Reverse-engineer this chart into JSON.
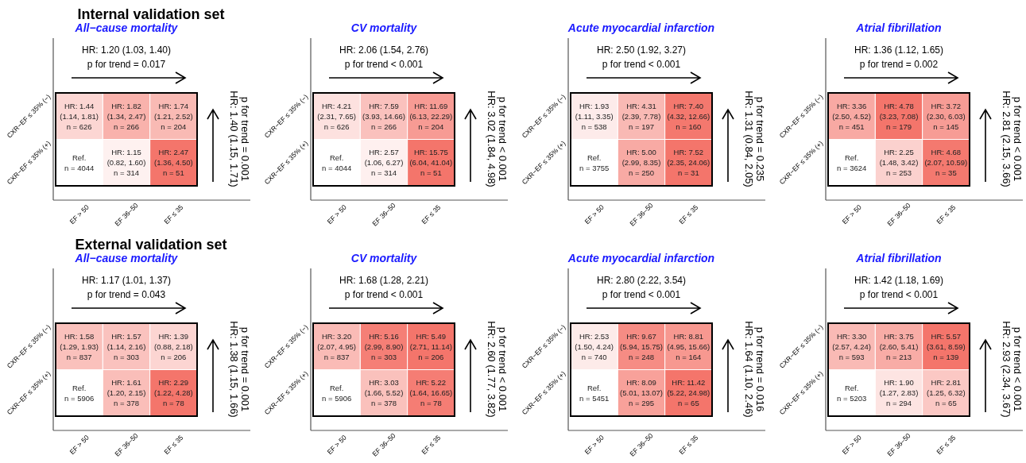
{
  "chart_data": [
    {
      "type": "heatmap",
      "data_labels": true,
      "title": "Internal validation set",
      "subtitle": "All−cause mortality",
      "categories": [
        "EF > 50",
        "EF 36–50",
        "EF ≤ 35"
      ],
      "y_categories": [
        "CXR−EF ≤ 35% (−)",
        "CXR−EF ≤ 35% (+)"
      ],
      "cells": [
        [
          1.44,
          1.82,
          1.74
        ],
        [
          null,
          1.15,
          2.47
        ]
      ],
      "cell_labels": [
        [
          "HR: 1.44",
          "HR: 1.82",
          "HR: 1.74"
        ],
        [
          "Ref.",
          "HR: 1.15",
          "HR: 2.47"
        ]
      ],
      "annotations": [
        "HR: 1.20 (1.03, 1.40)",
        "p for trend = 0.017",
        "HR: 1.40 (1.15, 1.71)",
        "p for trend = 0.001",
        "(1.14, 1.81)\nn = 626",
        "(1.34, 2.47)\nn = 266",
        "(1.21, 2.52)\nn = 204",
        "n = 4044",
        "(0.82, 1.60)\nn = 314",
        "(1.36, 4.50)\nn = 51"
      ]
    },
    {
      "type": "heatmap",
      "data_labels": true,
      "subtitle": "CV mortality",
      "categories": [
        "EF > 50",
        "EF 36–50",
        "EF ≤ 35"
      ],
      "y_categories": [
        "CXR−EF ≤ 35% (−)",
        "CXR−EF ≤ 35% (+)"
      ],
      "cells": [
        [
          4.21,
          7.59,
          11.69
        ],
        [
          null,
          2.57,
          15.75
        ]
      ],
      "cell_labels": [
        [
          "HR: 4.21",
          "HR: 7.59",
          "HR: 11.69"
        ],
        [
          "Ref.",
          "HR: 2.57",
          "HR: 15.75"
        ]
      ],
      "annotations": [
        "HR: 2.06 (1.54, 2.76)",
        "p for trend < 0.001",
        "HR: 3.02 (1.84, 4.98)",
        "p for trend < 0.001",
        "(2.31, 7.65)\nn = 626",
        "(3.93, 14.66)\nn = 266",
        "(6.13, 22.29)\nn = 204",
        "n = 4044",
        "(1.06, 6.27)\nn = 314",
        "(6.04, 41.04)\nn = 51"
      ]
    },
    {
      "type": "heatmap",
      "data_labels": true,
      "subtitle": "Acute myocardial infarction",
      "categories": [
        "EF > 50",
        "EF 36–50",
        "EF ≤ 35"
      ],
      "y_categories": [
        "CXR−EF ≤ 35% (−)",
        "CXR−EF ≤ 35% (+)"
      ],
      "cells": [
        [
          1.93,
          4.31,
          7.4
        ],
        [
          null,
          5.0,
          7.52
        ]
      ],
      "cell_labels": [
        [
          "HR: 1.93",
          "HR: 4.31",
          "HR: 7.40"
        ],
        [
          "Ref.",
          "HR: 5.00",
          "HR: 7.52"
        ]
      ],
      "annotations": [
        "HR: 2.50 (1.92, 3.27)",
        "p for trend < 0.001",
        "HR: 1.31 (0.84, 2.05)",
        "p for trend = 0.235",
        "(1.11, 3.35)\nn = 538",
        "(2.39, 7.78)\nn = 197",
        "(4.32, 12.66)\nn = 160",
        "n = 3755",
        "(2.99, 8.35)\nn = 250",
        "(2.35, 24.06)\nn = 31"
      ]
    },
    {
      "type": "heatmap",
      "data_labels": true,
      "subtitle": "Atrial fibrillation",
      "categories": [
        "EF > 50",
        "EF 36–50",
        "EF ≤ 35"
      ],
      "y_categories": [
        "CXR−EF ≤ 35% (−)",
        "CXR−EF ≤ 35% (+)"
      ],
      "cells": [
        [
          3.36,
          4.78,
          3.72
        ],
        [
          null,
          2.25,
          4.68
        ]
      ],
      "cell_labels": [
        [
          "HR: 3.36",
          "HR: 4.78",
          "HR: 3.72"
        ],
        [
          "Ref.",
          "HR: 2.25",
          "HR: 4.68"
        ]
      ],
      "annotations": [
        "HR: 1.36 (1.12, 1.65)",
        "p for trend = 0.002",
        "HR: 2.81 (2.15, 3.66)",
        "p for trend < 0.001",
        "(2.50, 4.52)\nn = 451",
        "(3.23, 7.08)\nn = 179",
        "(2.30, 6.03)\nn = 145",
        "n = 3624",
        "(1.48, 3.42)\nn = 253",
        "(2.07, 10.59)\nn = 35"
      ]
    },
    {
      "type": "heatmap",
      "data_labels": true,
      "title": "External validation set",
      "subtitle": "All−cause mortality",
      "categories": [
        "EF > 50",
        "EF 36–50",
        "EF ≤ 35"
      ],
      "y_categories": [
        "CXR−EF ≤ 35% (−)",
        "CXR−EF ≤ 35% (+)"
      ],
      "cells": [
        [
          1.58,
          1.57,
          1.39
        ],
        [
          null,
          1.61,
          2.29
        ]
      ],
      "cell_labels": [
        [
          "HR: 1.58",
          "HR: 1.57",
          "HR: 1.39"
        ],
        [
          "Ref.",
          "HR: 1.61",
          "HR: 2.29"
        ]
      ],
      "annotations": [
        "HR: 1.17 (1.01, 1.37)",
        "p for trend = 0.043",
        "HR: 1.38 (1.15, 1.66)",
        "p for trend = 0.001",
        "(1.29, 1.93)\nn = 837",
        "(1.14, 2.16)\nn = 303",
        "(0.88, 2.18)\nn = 206",
        "n = 5906",
        "(1.20, 2.15)\nn = 378",
        "(1.22, 4.28)\nn = 78"
      ]
    },
    {
      "type": "heatmap",
      "data_labels": true,
      "subtitle": "CV mortality",
      "categories": [
        "EF > 50",
        "EF 36–50",
        "EF ≤ 35"
      ],
      "y_categories": [
        "CXR−EF ≤ 35% (−)",
        "CXR−EF ≤ 35% (+)"
      ],
      "cells": [
        [
          3.2,
          5.16,
          5.49
        ],
        [
          null,
          3.03,
          5.22
        ]
      ],
      "cell_labels": [
        [
          "HR: 3.20",
          "HR: 5.16",
          "HR: 5.49"
        ],
        [
          "Ref.",
          "HR: 3.03",
          "HR: 5.22"
        ]
      ],
      "annotations": [
        "HR: 1.68 (1.28, 2.21)",
        "p for trend < 0.001",
        "HR: 2.60 (1.77, 3.82)",
        "p for trend < 0.001",
        "(2.07, 4.95)\nn = 837",
        "(2.99, 8.90)\nn = 303",
        "(2.71, 11.14)\nn = 206",
        "n = 5906",
        "(1.66, 5.52)\nn = 378",
        "(1.64, 16.65)\nn = 78"
      ]
    },
    {
      "type": "heatmap",
      "data_labels": true,
      "subtitle": "Acute myocardial infarction",
      "categories": [
        "EF > 50",
        "EF 36–50",
        "EF ≤ 35"
      ],
      "y_categories": [
        "CXR−EF ≤ 35% (−)",
        "CXR−EF ≤ 35% (+)"
      ],
      "cells": [
        [
          2.53,
          9.67,
          8.81
        ],
        [
          null,
          8.09,
          11.42
        ]
      ],
      "cell_labels": [
        [
          "HR: 2.53",
          "HR: 9.67",
          "HR: 8.81"
        ],
        [
          "Ref.",
          "HR: 8.09",
          "HR: 11.42"
        ]
      ],
      "annotations": [
        "HR: 2.80 (2.22, 3.54)",
        "p for trend < 0.001",
        "HR: 1.64 (1.10, 2.46)",
        "p for trend = 0.016",
        "(1.50, 4.24)\nn = 740",
        "(5.94, 15.75)\nn = 248",
        "(4.95, 15.66)\nn = 164",
        "n = 5451",
        "(5.01, 13.07)\nn = 295",
        "(5.22, 24.98)\nn = 65"
      ]
    },
    {
      "type": "heatmap",
      "data_labels": true,
      "subtitle": "Atrial fibrillation",
      "categories": [
        "EF > 50",
        "EF 36–50",
        "EF ≤ 35"
      ],
      "y_categories": [
        "CXR−EF ≤ 35% (−)",
        "CXR−EF ≤ 35% (+)"
      ],
      "cells": [
        [
          3.3,
          3.75,
          5.57
        ],
        [
          null,
          1.9,
          2.81
        ]
      ],
      "cell_labels": [
        [
          "HR: 3.30",
          "HR: 3.75",
          "HR: 5.57"
        ],
        [
          "Ref.",
          "HR: 1.90",
          "HR: 2.81"
        ]
      ],
      "annotations": [
        "HR: 1.42 (1.18, 1.69)",
        "p for trend < 0.001",
        "HR: 2.93 (2.34, 3.67)",
        "p for trend < 0.001",
        "(2.57, 4.24)\nn = 593",
        "(2.60, 5.41)\nn = 213",
        "(3.61, 8.59)\nn = 139",
        "n = 5203",
        "(1.27, 2.83)\nn = 294",
        "(1.25, 6.32)\nn = 65"
      ]
    }
  ]
}
